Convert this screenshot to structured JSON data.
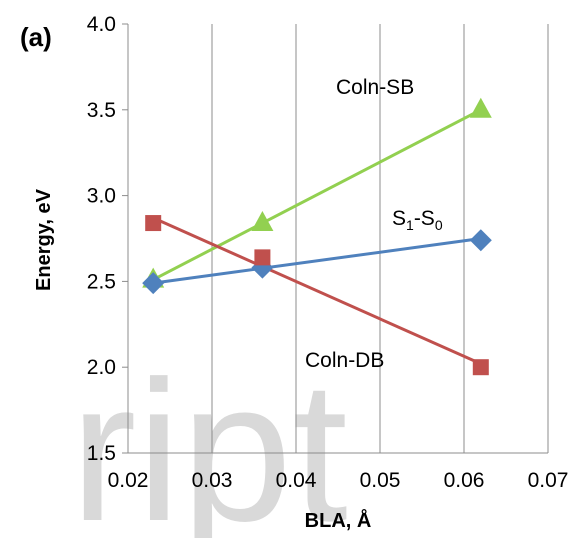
{
  "chart_data": {
    "type": "scatter",
    "panel_label": "(a)",
    "xlabel": "BLA, Å",
    "ylabel": "Energy, eV",
    "xlim": [
      0.02,
      0.07
    ],
    "ylim": [
      1.5,
      4.0
    ],
    "xticks": [
      0.02,
      0.03,
      0.04,
      0.05,
      0.06,
      0.07
    ],
    "xtick_labels": [
      "0.02",
      "0.03",
      "0.04",
      "0.05",
      "0.06",
      "0.07"
    ],
    "yticks": [
      1.5,
      2.0,
      2.5,
      3.0,
      3.5,
      4.0
    ],
    "ytick_labels": [
      "1.5",
      "2.0",
      "2.5",
      "3.0",
      "3.5",
      "4.0"
    ],
    "grid": "vertical",
    "series": [
      {
        "name": "ConIn-SB",
        "label_text": "Coln-SB",
        "marker": "triangle",
        "color": "#92d050",
        "x": [
          0.023,
          0.036,
          0.062
        ],
        "y": [
          2.51,
          2.84,
          3.5
        ],
        "trendline": {
          "x": [
            0.023,
            0.062
          ],
          "y": [
            2.51,
            3.5
          ]
        }
      },
      {
        "name": "S1-S0",
        "label_main": "S",
        "label_sub1": "1",
        "label_mid": "-S",
        "label_sub2": "0",
        "marker": "diamond",
        "color": "#4f81bd",
        "x": [
          0.023,
          0.036,
          0.062
        ],
        "y": [
          2.49,
          2.58,
          2.74
        ],
        "trendline": {
          "x": [
            0.023,
            0.062
          ],
          "y": [
            2.49,
            2.75
          ]
        }
      },
      {
        "name": "ConIn-DB",
        "label_text": "Coln-DB",
        "marker": "square",
        "color": "#c0504d",
        "x": [
          0.023,
          0.036,
          0.062
        ],
        "y": [
          2.84,
          2.64,
          2.0
        ],
        "trendline": {
          "x": [
            0.023,
            0.062
          ],
          "y": [
            2.87,
            2.02
          ]
        }
      }
    ],
    "watermark_text": "ript"
  }
}
